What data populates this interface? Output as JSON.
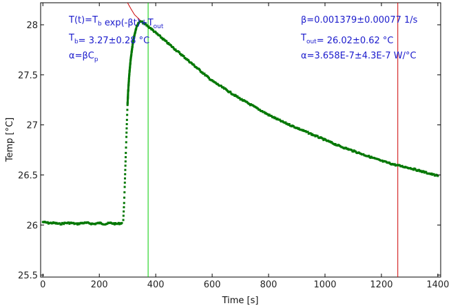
{
  "chart_data": {
    "type": "scatter",
    "xlabel": "Time [s]",
    "ylabel": "Temp [°C]",
    "xlim": [
      -8,
      1410
    ],
    "ylim": [
      25.48,
      28.22
    ],
    "x_ticks": [
      0,
      200,
      400,
      600,
      800,
      1000,
      1200,
      1400
    ],
    "y_ticks": [
      25.5,
      26,
      26.5,
      27,
      27.5,
      28
    ],
    "x_tick_labels": [
      "0",
      "200",
      "400",
      "600",
      "800",
      "1000",
      "1200",
      "1400"
    ],
    "y_tick_labels": [
      "25.5",
      "26",
      "26.5",
      "27",
      "27.5",
      "28"
    ],
    "grid": false,
    "series": [
      {
        "color": "#007700",
        "marker": "square",
        "points": [
          [
            0,
            26.03
          ],
          [
            20,
            26.02
          ],
          [
            40,
            26.02
          ],
          [
            60,
            26.01
          ],
          [
            80,
            26.02
          ],
          [
            100,
            26.02
          ],
          [
            120,
            26.01
          ],
          [
            140,
            26.02
          ],
          [
            160,
            26.02
          ],
          [
            180,
            26.01
          ],
          [
            200,
            26.02
          ],
          [
            220,
            26.01
          ],
          [
            240,
            26.02
          ],
          [
            260,
            26.01
          ],
          [
            280,
            26.02
          ],
          [
            285,
            26.05
          ],
          [
            288,
            26.22
          ],
          [
            290,
            26.38
          ],
          [
            292,
            26.55
          ],
          [
            294,
            26.72
          ],
          [
            296,
            26.88
          ],
          [
            298,
            27.05
          ],
          [
            300,
            27.2
          ],
          [
            302,
            27.32
          ],
          [
            305,
            27.45
          ],
          [
            308,
            27.56
          ],
          [
            312,
            27.67
          ],
          [
            316,
            27.76
          ],
          [
            320,
            27.84
          ],
          [
            325,
            27.9
          ],
          [
            330,
            27.96
          ],
          [
            335,
            28.0
          ],
          [
            340,
            28.02
          ],
          [
            345,
            28.03
          ],
          [
            350,
            28.03
          ],
          [
            360,
            28.01
          ],
          [
            380,
            27.97
          ],
          [
            400,
            27.92
          ],
          [
            450,
            27.8
          ],
          [
            500,
            27.68
          ],
          [
            550,
            27.56
          ],
          [
            600,
            27.44
          ],
          [
            650,
            27.35
          ],
          [
            700,
            27.26
          ],
          [
            750,
            27.18
          ],
          [
            800,
            27.1
          ],
          [
            850,
            27.03
          ],
          [
            900,
            26.97
          ],
          [
            950,
            26.91
          ],
          [
            1000,
            26.85
          ],
          [
            1050,
            26.79
          ],
          [
            1100,
            26.74
          ],
          [
            1150,
            26.69
          ],
          [
            1200,
            26.64
          ],
          [
            1250,
            26.6
          ],
          [
            1300,
            26.57
          ],
          [
            1350,
            26.53
          ],
          [
            1400,
            26.49
          ]
        ]
      }
    ],
    "fit_curve": {
      "color": "#cc0000",
      "points": [
        [
          280,
          28.3
        ],
        [
          290,
          28.27
        ],
        [
          300,
          28.22
        ],
        [
          312,
          28.16
        ],
        [
          325,
          28.1
        ],
        [
          340,
          28.06
        ],
        [
          350,
          28.03
        ]
      ]
    },
    "vertical_lines": [
      {
        "x": 373,
        "color": "#00cc00"
      },
      {
        "x": 1258,
        "color": "#cc0000"
      }
    ],
    "annotations": {
      "left": [
        {
          "parts": [
            {
              "t": "T(t)=T"
            },
            {
              "t": "b",
              "sub": true
            },
            {
              "t": " exp(-βt)+T"
            },
            {
              "t": "out",
              "sub": true
            }
          ]
        },
        {
          "parts": [
            {
              "t": "T"
            },
            {
              "t": "b",
              "sub": true
            },
            {
              "t": "= 3.27±0.28 °C"
            }
          ]
        },
        {
          "parts": [
            {
              "t": "α=βC"
            },
            {
              "t": "p",
              "sub": true
            }
          ]
        }
      ],
      "right": [
        {
          "parts": [
            {
              "t": "β=0.001379±0.00077 1/s"
            }
          ]
        },
        {
          "parts": [
            {
              "t": "T"
            },
            {
              "t": "out",
              "sub": true
            },
            {
              "t": "= 26.02±0.62 °C"
            }
          ]
        },
        {
          "parts": [
            {
              "t": "α=3.658E-7±4.3E-7 W/°C"
            }
          ]
        }
      ],
      "color": "#1a1acc"
    }
  }
}
